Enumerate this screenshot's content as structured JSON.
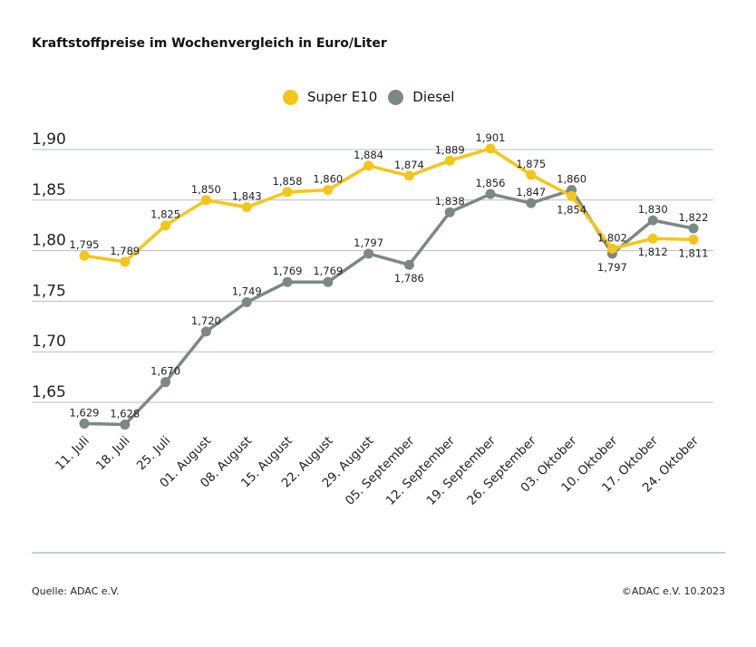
{
  "title": "Kraftstoffpreise im Wochenvergleich in Euro/Liter",
  "footer": {
    "source": "Quelle: ADAC e.V.",
    "copyright": "©ADAC e.V. 10.2023"
  },
  "chart_data": {
    "type": "line",
    "title": "Kraftstoffpreise im Wochenvergleich in Euro/Liter",
    "categories": [
      "11. Juli",
      "18. Juli",
      "25. Juli",
      "01. August",
      "08. August",
      "15. August",
      "22. August",
      "29. August",
      "05. September",
      "12. September",
      "19. September",
      "26. September",
      "03. Oktober",
      "10. Oktober",
      "17. Oktober",
      "24. Oktober"
    ],
    "series": [
      {
        "name": "Super E10",
        "color": "#f5c519",
        "values": [
          1.795,
          1.789,
          1.825,
          1.85,
          1.843,
          1.858,
          1.86,
          1.884,
          1.874,
          1.889,
          1.901,
          1.875,
          1.854,
          1.802,
          1.812,
          1.811
        ]
      },
      {
        "name": "Diesel",
        "color": "#7b8985",
        "values": [
          1.629,
          1.628,
          1.67,
          1.72,
          1.749,
          1.769,
          1.769,
          1.797,
          1.786,
          1.838,
          1.856,
          1.847,
          1.86,
          1.797,
          1.83,
          1.822
        ]
      }
    ],
    "yticks": [
      "1,90",
      "1,85",
      "1,80",
      "1,75",
      "1,70",
      "1,65"
    ],
    "ytick_values": [
      1.9,
      1.85,
      1.8,
      1.75,
      1.7,
      1.65
    ],
    "ylim": [
      1.615,
      1.915
    ],
    "grid": true,
    "legend_position": "top-center",
    "decimal_separator": ","
  }
}
